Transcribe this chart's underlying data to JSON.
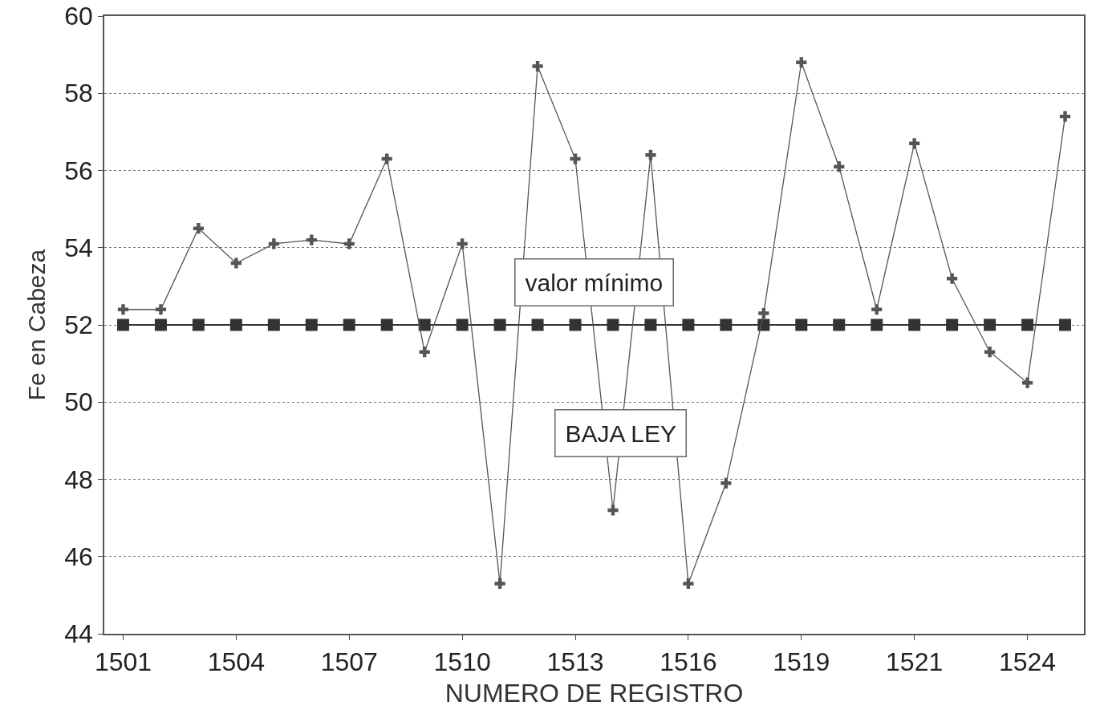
{
  "chart_data": {
    "type": "line",
    "xlabel": "NUMERO DE REGISTRO",
    "ylabel": "Fe en Cabeza",
    "categories": [
      "1501",
      null,
      null,
      "1504",
      null,
      null,
      "1507",
      null,
      null,
      "1510",
      null,
      null,
      "1513",
      null,
      null,
      "1516",
      null,
      null,
      "1519",
      null,
      null,
      "1521",
      null,
      null,
      "1524",
      null
    ],
    "series": [
      {
        "color": "#555555",
        "marker": "cross",
        "values": [
          52.4,
          52.4,
          54.5,
          53.6,
          54.1,
          54.2,
          54.1,
          56.3,
          51.3,
          54.1,
          45.3,
          58.7,
          56.3,
          47.2,
          56.4,
          45.3,
          47.9,
          52.3,
          58.8,
          56.1,
          52.4,
          56.7,
          53.2,
          51.3,
          50.5,
          57.4
        ]
      },
      {
        "color": "#333333",
        "marker": "square",
        "values": [
          52,
          52,
          52,
          52,
          52,
          52,
          52,
          52,
          52,
          52,
          52,
          52,
          52,
          52,
          52,
          52,
          52,
          52,
          52,
          52,
          52,
          52,
          52,
          52,
          52,
          52
        ]
      }
    ],
    "ylim": [
      44,
      60
    ],
    "yticks": [
      44,
      46,
      48,
      50,
      52,
      54,
      56,
      58,
      60
    ],
    "grid": "y",
    "annotations": [
      "valor mínimo",
      "BAJA LEY"
    ]
  }
}
